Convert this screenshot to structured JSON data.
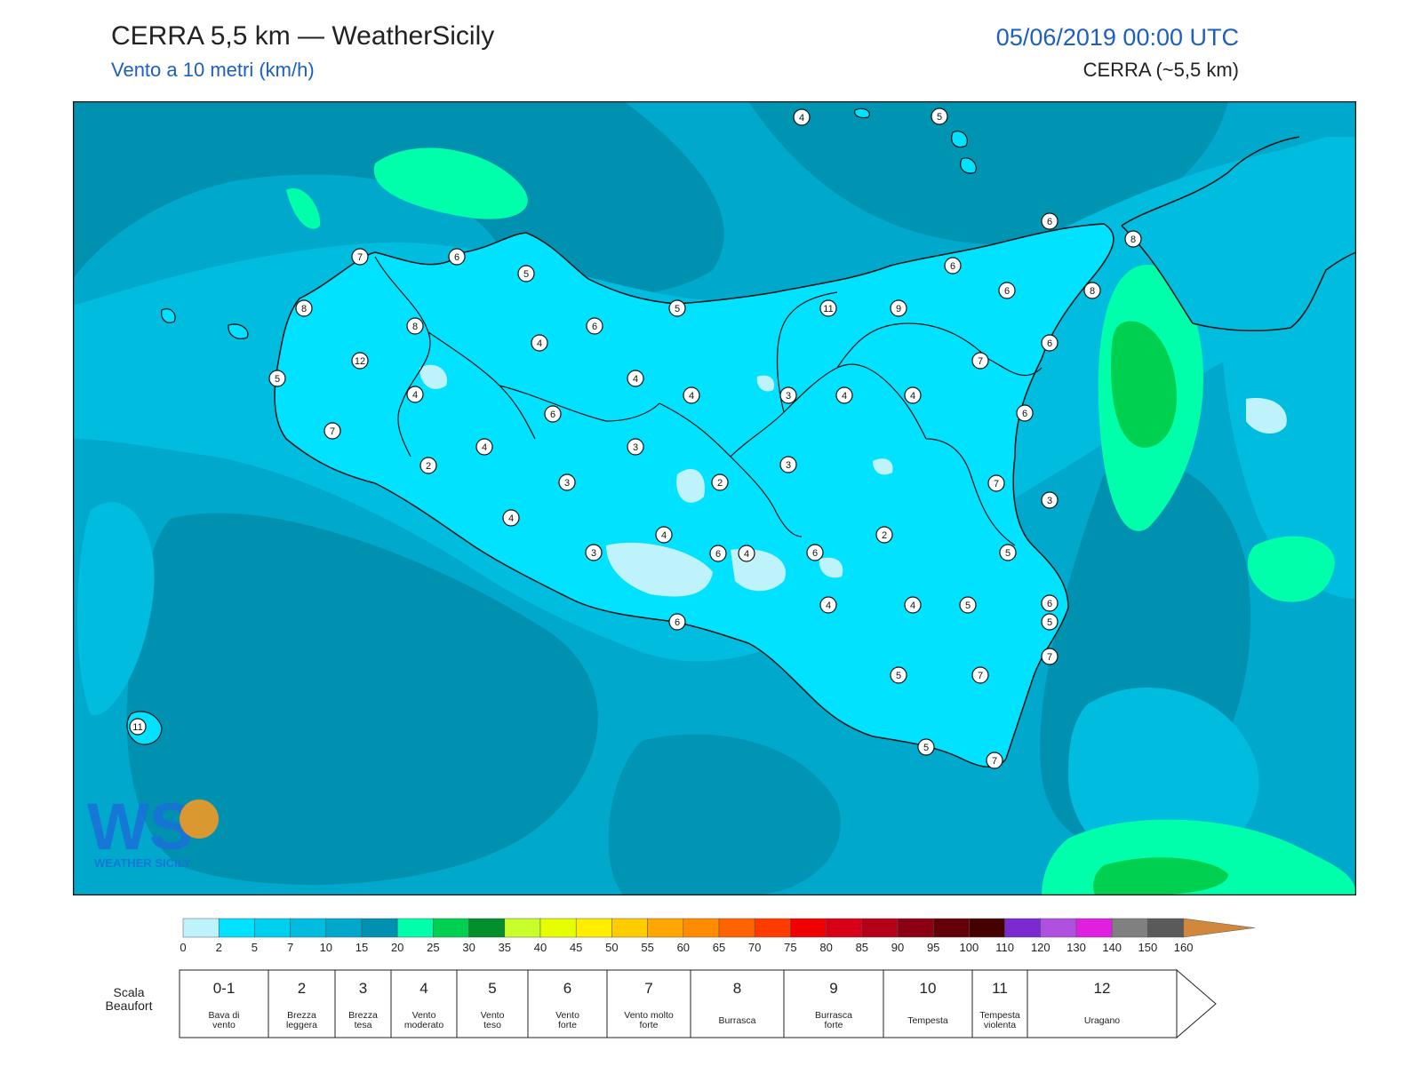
{
  "header": {
    "title": "CERRA 5,5 km — WeatherSicily",
    "subtitle": "Vento a 10 metri (km/h)",
    "datetime": "05/06/2019 00:00 UTC",
    "model": "CERRA (~5,5 km)"
  },
  "logo": {
    "text": "WEATHER SICILY",
    "initials": "WS"
  },
  "colorbar": {
    "ticks": [
      "0",
      "2",
      "5",
      "7",
      "10",
      "15",
      "20",
      "25",
      "30",
      "35",
      "40",
      "45",
      "50",
      "55",
      "60",
      "65",
      "70",
      "75",
      "80",
      "85",
      "90",
      "95",
      "100",
      "110",
      "120",
      "130",
      "140",
      "150",
      "160"
    ],
    "colors": [
      "#bff3fb",
      "#00e2ff",
      "#00d0f0",
      "#00bddf",
      "#00a9cc",
      "#0091b0",
      "#00ffaa",
      "#00d050",
      "#008f2a",
      "#c8ff2a",
      "#e6ff00",
      "#ffee00",
      "#ffcc00",
      "#ffa600",
      "#ff8c00",
      "#ff6400",
      "#ff3c00",
      "#f00000",
      "#d80018",
      "#b40018",
      "#8c0014",
      "#640008",
      "#460000",
      "#7a2ad0",
      "#b050e0",
      "#e020e0",
      "#808080",
      "#5a5a5a",
      "#000000",
      "#8b4513",
      "#d2873d"
    ]
  },
  "beaufort": {
    "caption": "Scala Beaufort",
    "levels": [
      {
        "num": "0-1",
        "name": "Bava di vento"
      },
      {
        "num": "2",
        "name": "Brezza leggera"
      },
      {
        "num": "3",
        "name": "Brezza tesa"
      },
      {
        "num": "4",
        "name": "Vento moderato"
      },
      {
        "num": "5",
        "name": "Vento teso"
      },
      {
        "num": "6",
        "name": "Vento forte"
      },
      {
        "num": "7",
        "name": "Vento molto forte"
      },
      {
        "num": "8",
        "name": "Burrasca"
      },
      {
        "num": "9",
        "name": "Burrasca forte"
      },
      {
        "num": "10",
        "name": "Tempesta"
      },
      {
        "num": "11",
        "name": "Tempesta violenta"
      },
      {
        "num": "12",
        "name": "Uragano"
      }
    ]
  },
  "station_values": [
    "4",
    "5",
    "6",
    "8",
    "7",
    "6",
    "5",
    "5",
    "6",
    "11",
    "9",
    "6",
    "8",
    "8",
    "4",
    "6",
    "6",
    "7",
    "12",
    "8",
    "5",
    "4",
    "4",
    "6",
    "4",
    "3",
    "4",
    "4",
    "6",
    "7",
    "2",
    "4",
    "3",
    "3",
    "2",
    "3",
    "4",
    "4",
    "7",
    "6",
    "5",
    "6",
    "4",
    "3",
    "2",
    "4",
    "6",
    "7",
    "5",
    "4",
    "3",
    "7",
    "7",
    "5",
    "5",
    "6",
    "5",
    "11"
  ],
  "palette": {
    "sea_dark": "#0091b0",
    "sea_mid": "#00a9cc",
    "sea_light": "#00bddf",
    "land": "#00e2ff",
    "calm": "#bff3fb",
    "green_light": "#00ffaa",
    "green_mid": "#00d050"
  }
}
